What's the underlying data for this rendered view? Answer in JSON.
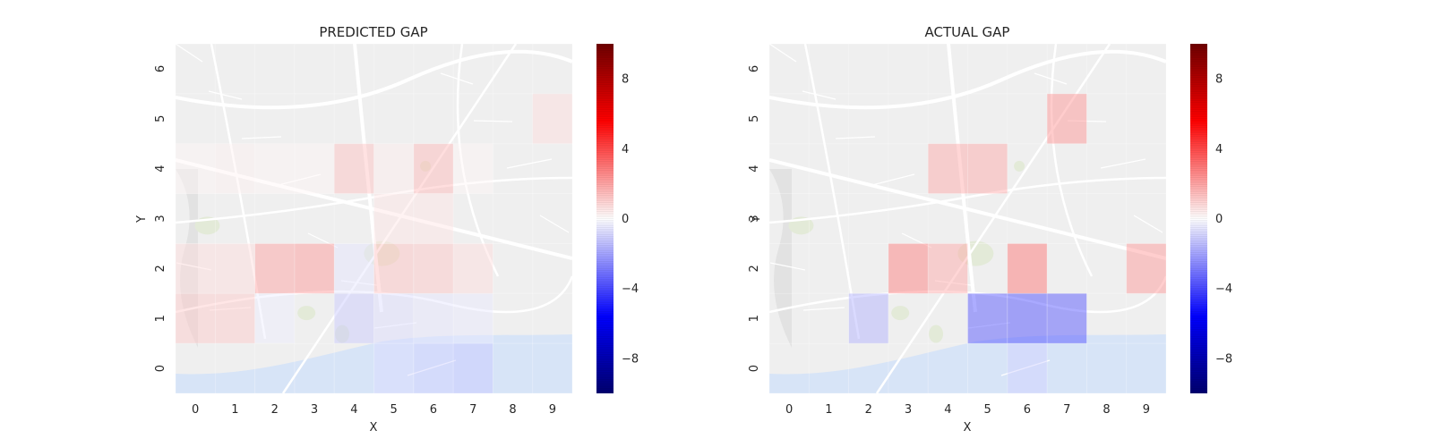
{
  "colors": {
    "positive": "#ff0000",
    "negative": "#0000ff",
    "neutral": "#ffffff",
    "map_land": "#efefef",
    "map_water": "#d7e4f7",
    "map_park": "#e3ead8"
  },
  "chart_data": [
    {
      "type": "heatmap",
      "title": "PREDICTED GAP",
      "xlabel": "X",
      "ylabel": "Y",
      "x_ticks": [
        "0",
        "1",
        "2",
        "3",
        "4",
        "5",
        "6",
        "7",
        "8",
        "9"
      ],
      "y_ticks": [
        "0",
        "1",
        "2",
        "3",
        "4",
        "5",
        "6"
      ],
      "xlim": [
        -0.5,
        9.5
      ],
      "ylim": [
        -0.5,
        6.5
      ],
      "colorbar": {
        "min": -10,
        "max": 10,
        "ticks": [
          "8",
          "4",
          "0",
          "−4",
          "−8"
        ],
        "tick_values": [
          8,
          4,
          0,
          -4,
          -8
        ]
      },
      "background": "map",
      "cells": [
        {
          "x": 9,
          "y": 5,
          "value": 0.8
        },
        {
          "x": 4,
          "y": 4,
          "value": 1.4
        },
        {
          "x": 6,
          "y": 4,
          "value": 1.6
        },
        {
          "x": 0,
          "y": 4,
          "value": 0.2
        },
        {
          "x": 1,
          "y": 4,
          "value": 0.3
        },
        {
          "x": 2,
          "y": 4,
          "value": 0.2
        },
        {
          "x": 3,
          "y": 4,
          "value": 0.2
        },
        {
          "x": 5,
          "y": 4,
          "value": 0.4
        },
        {
          "x": 7,
          "y": 4,
          "value": 0.2
        },
        {
          "x": 5,
          "y": 3,
          "value": 0.6
        },
        {
          "x": 6,
          "y": 3,
          "value": 0.6
        },
        {
          "x": 0,
          "y": 2,
          "value": 0.8
        },
        {
          "x": 1,
          "y": 2,
          "value": 0.8
        },
        {
          "x": 2,
          "y": 2,
          "value": 2.2
        },
        {
          "x": 3,
          "y": 2,
          "value": 2.4
        },
        {
          "x": 4,
          "y": 2,
          "value": -0.6
        },
        {
          "x": 5,
          "y": 2,
          "value": 1.4
        },
        {
          "x": 6,
          "y": 2,
          "value": 1.3
        },
        {
          "x": 7,
          "y": 2,
          "value": 0.8
        },
        {
          "x": 0,
          "y": 1,
          "value": 1.2
        },
        {
          "x": 1,
          "y": 1,
          "value": 1.2
        },
        {
          "x": 2,
          "y": 1,
          "value": -0.4
        },
        {
          "x": 4,
          "y": 1,
          "value": -1.2
        },
        {
          "x": 5,
          "y": 1,
          "value": -0.8
        },
        {
          "x": 6,
          "y": 1,
          "value": -0.6
        },
        {
          "x": 7,
          "y": 1,
          "value": -0.5
        },
        {
          "x": 5,
          "y": 0,
          "value": -0.8
        },
        {
          "x": 6,
          "y": 0,
          "value": -1.0
        },
        {
          "x": 7,
          "y": 0,
          "value": -1.2
        }
      ]
    },
    {
      "type": "heatmap",
      "title": "ACTUAL GAP",
      "xlabel": "X",
      "ylabel": "Y",
      "x_ticks": [
        "0",
        "1",
        "2",
        "3",
        "4",
        "5",
        "6",
        "7",
        "8",
        "9"
      ],
      "y_ticks": [
        "0",
        "1",
        "2",
        "3",
        "4",
        "5",
        "6"
      ],
      "xlim": [
        -0.5,
        9.5
      ],
      "ylim": [
        -0.5,
        6.5
      ],
      "colorbar": {
        "min": -10,
        "max": 10,
        "ticks": [
          "8",
          "4",
          "0",
          "−4",
          "−8"
        ],
        "tick_values": [
          8,
          4,
          0,
          -4,
          -8
        ]
      },
      "background": "map",
      "cells": [
        {
          "x": 7,
          "y": 5,
          "value": 2.5
        },
        {
          "x": 4,
          "y": 4,
          "value": 2.0
        },
        {
          "x": 5,
          "y": 4,
          "value": 2.0
        },
        {
          "x": 3,
          "y": 2,
          "value": 3.0
        },
        {
          "x": 4,
          "y": 2,
          "value": 2.0
        },
        {
          "x": 6,
          "y": 2,
          "value": 3.2
        },
        {
          "x": 9,
          "y": 2,
          "value": 2.4
        },
        {
          "x": 2,
          "y": 1,
          "value": -1.8
        },
        {
          "x": 5,
          "y": 1,
          "value": -4.0
        },
        {
          "x": 6,
          "y": 1,
          "value": -4.2
        },
        {
          "x": 7,
          "y": 1,
          "value": -4.0
        },
        {
          "x": 6,
          "y": 0,
          "value": -1.0
        }
      ]
    }
  ]
}
